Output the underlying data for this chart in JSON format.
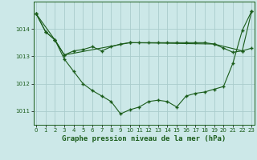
{
  "background_color": "#cce8e8",
  "grid_color": "#aacccc",
  "line_color": "#1a5c1a",
  "marker_color": "#1a5c1a",
  "title": "Graphe pression niveau de la mer (hPa)",
  "ylim": [
    1010.5,
    1015.0
  ],
  "yticks": [
    1011,
    1012,
    1013,
    1014
  ],
  "xlim": [
    -0.3,
    23.3
  ],
  "line1_x": [
    0,
    1,
    2,
    3,
    4,
    5,
    6,
    7,
    8,
    9,
    10,
    11,
    12,
    13,
    14,
    15,
    16,
    17,
    18,
    19,
    20,
    21,
    22,
    23
  ],
  "line1_y": [
    1014.55,
    1013.9,
    1013.6,
    1012.9,
    1012.45,
    1012.0,
    1011.75,
    1011.55,
    1011.35,
    1010.9,
    1011.05,
    1011.15,
    1011.35,
    1011.4,
    1011.35,
    1011.15,
    1011.55,
    1011.65,
    1011.7,
    1011.8,
    1011.9,
    1012.75,
    1013.95,
    1014.65
  ],
  "line2_x": [
    0,
    1,
    2,
    3,
    4,
    5,
    6,
    7,
    8,
    9,
    10,
    11,
    12,
    13,
    14,
    15,
    16,
    17,
    18,
    19,
    20,
    21,
    22,
    23
  ],
  "line2_y": [
    1014.55,
    1013.9,
    1013.6,
    1013.05,
    1013.2,
    1013.25,
    1013.35,
    1013.2,
    1013.35,
    1013.45,
    1013.5,
    1013.5,
    1013.5,
    1013.5,
    1013.5,
    1013.5,
    1013.5,
    1013.5,
    1013.5,
    1013.45,
    1013.3,
    1013.15,
    1013.2,
    1013.3
  ],
  "line3_x": [
    0,
    2,
    3,
    10,
    19,
    22,
    23
  ],
  "line3_y": [
    1014.55,
    1013.6,
    1013.05,
    1013.5,
    1013.45,
    1013.2,
    1014.65
  ],
  "title_fontsize": 6.5,
  "tick_fontsize": 5.0
}
